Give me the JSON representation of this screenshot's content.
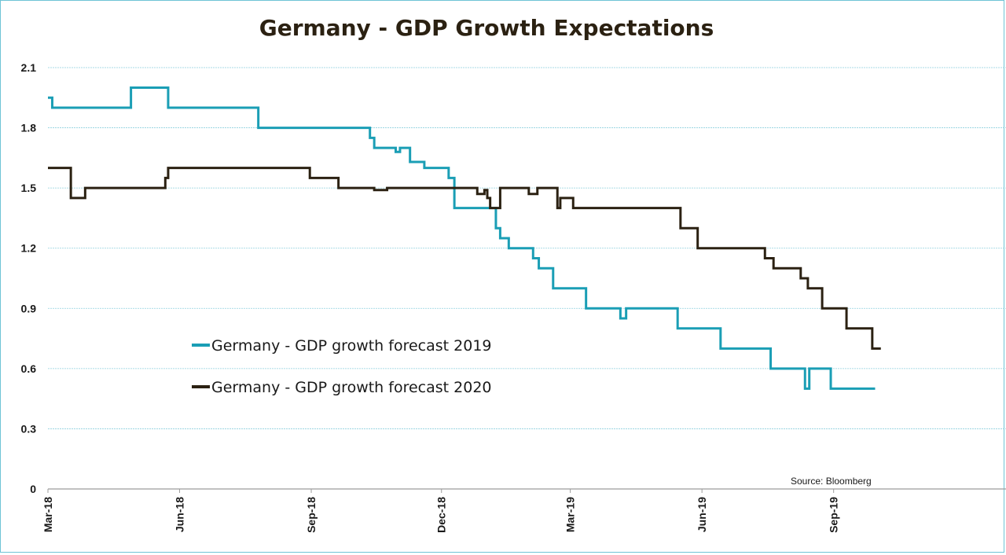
{
  "chart_data": {
    "type": "line",
    "title": "Germany - GDP Growth Expectations",
    "source": "Source: Bloomberg",
    "xlabel": "",
    "ylabel": "",
    "ylim": [
      0,
      2.1
    ],
    "yticks": [
      "0",
      "0.3",
      "0.6",
      "0.9",
      "1.2",
      "1.5",
      "1.8",
      "2.1"
    ],
    "xticks": [
      {
        "label": "Mar-18",
        "date": "2018-03-01"
      },
      {
        "label": "Jun-18",
        "date": "2018-06-01"
      },
      {
        "label": "Sep-18",
        "date": "2018-09-01"
      },
      {
        "label": "Dec-18",
        "date": "2018-12-01"
      },
      {
        "label": "Mar-19",
        "date": "2019-03-01"
      },
      {
        "label": "Jun-19",
        "date": "2019-06-01"
      },
      {
        "label": "Sep-19",
        "date": "2019-09-01"
      }
    ],
    "xlim": [
      "2018-03-01",
      "2019-12-31"
    ],
    "grid": true,
    "legend_position": "center-left",
    "series": [
      {
        "name": "Germany - GDP growth forecast 2019",
        "color": "#1a9eb5",
        "points": [
          [
            "2018-03-01",
            1.95
          ],
          [
            "2018-03-04",
            1.9
          ],
          [
            "2018-04-28",
            2.0
          ],
          [
            "2018-05-24",
            1.9
          ],
          [
            "2018-07-26",
            1.8
          ],
          [
            "2018-10-12",
            1.75
          ],
          [
            "2018-10-15",
            1.7
          ],
          [
            "2018-10-30",
            1.68
          ],
          [
            "2018-11-02",
            1.7
          ],
          [
            "2018-11-09",
            1.63
          ],
          [
            "2018-11-19",
            1.6
          ],
          [
            "2018-12-06",
            1.55
          ],
          [
            "2018-12-10",
            1.4
          ],
          [
            "2019-01-08",
            1.3
          ],
          [
            "2019-01-11",
            1.25
          ],
          [
            "2019-01-17",
            1.2
          ],
          [
            "2019-02-03",
            1.15
          ],
          [
            "2019-02-07",
            1.1
          ],
          [
            "2019-02-17",
            1.0
          ],
          [
            "2019-03-12",
            0.9
          ],
          [
            "2019-04-05",
            0.85
          ],
          [
            "2019-04-09",
            0.9
          ],
          [
            "2019-05-15",
            0.8
          ],
          [
            "2019-06-14",
            0.7
          ],
          [
            "2019-07-19",
            0.6
          ],
          [
            "2019-08-12",
            0.5
          ],
          [
            "2019-08-15",
            0.6
          ],
          [
            "2019-08-30",
            0.5
          ],
          [
            "2019-09-30",
            0.5
          ]
        ]
      },
      {
        "name": "Germany - GDP growth forecast 2020",
        "color": "#2b2112",
        "points": [
          [
            "2018-03-01",
            1.6
          ],
          [
            "2018-03-17",
            1.45
          ],
          [
            "2018-03-27",
            1.5
          ],
          [
            "2018-05-22",
            1.55
          ],
          [
            "2018-05-24",
            1.6
          ],
          [
            "2018-08-31",
            1.55
          ],
          [
            "2018-09-20",
            1.5
          ],
          [
            "2018-10-15",
            1.49
          ],
          [
            "2018-10-24",
            1.5
          ],
          [
            "2018-12-26",
            1.47
          ],
          [
            "2018-12-31",
            1.49
          ],
          [
            "2019-01-02",
            1.45
          ],
          [
            "2019-01-04",
            1.4
          ],
          [
            "2019-01-11",
            1.5
          ],
          [
            "2019-01-31",
            1.47
          ],
          [
            "2019-02-06",
            1.5
          ],
          [
            "2019-02-20",
            1.4
          ],
          [
            "2019-02-22",
            1.45
          ],
          [
            "2019-03-03",
            1.4
          ],
          [
            "2019-05-17",
            1.3
          ],
          [
            "2019-05-29",
            1.2
          ],
          [
            "2019-07-15",
            1.15
          ],
          [
            "2019-07-21",
            1.1
          ],
          [
            "2019-08-09",
            1.05
          ],
          [
            "2019-08-14",
            1.0
          ],
          [
            "2019-08-24",
            0.9
          ],
          [
            "2019-09-10",
            0.8
          ],
          [
            "2019-09-28",
            0.7
          ],
          [
            "2019-10-04",
            0.7
          ]
        ]
      }
    ]
  }
}
